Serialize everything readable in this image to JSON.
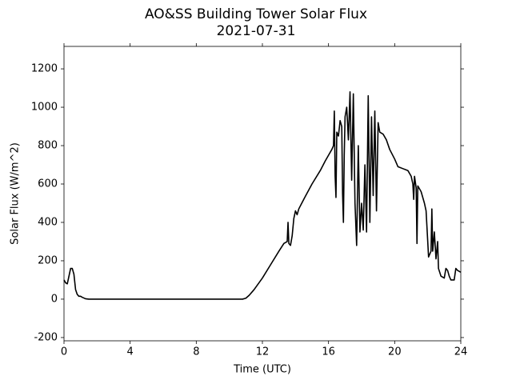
{
  "chart_data": {
    "type": "line",
    "title": "AO&SS Building Tower Solar Flux",
    "subtitle": "2021-07-31",
    "x_label": "Time (UTC)",
    "y_label": "Solar Flux (W/m^2)",
    "x": [
      0,
      0.1,
      0.2,
      0.3,
      0.4,
      0.5,
      0.6,
      0.7,
      0.8,
      0.9,
      1.0,
      1.1,
      1.3,
      1.5,
      4,
      8,
      10.8,
      11.0,
      11.2,
      11.5,
      12.0,
      12.5,
      13.0,
      13.3,
      13.5,
      13.55,
      13.6,
      13.7,
      13.8,
      13.9,
      14.0,
      14.1,
      14.2,
      14.5,
      15.0,
      15.5,
      15.8,
      16.0,
      16.2,
      16.3,
      16.35,
      16.4,
      16.45,
      16.5,
      16.6,
      16.7,
      16.8,
      16.85,
      16.9,
      16.95,
      17.0,
      17.1,
      17.2,
      17.3,
      17.4,
      17.5,
      17.6,
      17.7,
      17.8,
      17.9,
      18.0,
      18.1,
      18.2,
      18.3,
      18.4,
      18.5,
      18.6,
      18.7,
      18.8,
      18.9,
      19.0,
      19.1,
      19.3,
      19.5,
      19.7,
      20.0,
      20.2,
      20.5,
      20.8,
      21.0,
      21.1,
      21.15,
      21.2,
      21.3,
      21.35,
      21.4,
      21.6,
      21.8,
      21.9,
      22.0,
      22.05,
      22.2,
      22.25,
      22.3,
      22.4,
      22.5,
      22.6,
      22.65,
      22.8,
      23.0,
      23.1,
      23.2,
      23.3,
      23.4,
      23.6,
      23.7,
      23.8,
      24.0
    ],
    "series": [
      {
        "name": "Solar Flux",
        "color": "#000000",
        "values": [
          100,
          85,
          80,
          120,
          160,
          160,
          130,
          50,
          25,
          15,
          15,
          10,
          2,
          0,
          0,
          0,
          0,
          5,
          20,
          50,
          110,
          180,
          250,
          290,
          300,
          400,
          290,
          280,
          330,
          420,
          460,
          440,
          470,
          520,
          600,
          670,
          720,
          750,
          780,
          800,
          980,
          640,
          530,
          870,
          850,
          930,
          900,
          550,
          400,
          750,
          950,
          1000,
          830,
          1080,
          620,
          1070,
          500,
          280,
          800,
          350,
          500,
          360,
          700,
          350,
          1060,
          400,
          950,
          540,
          980,
          460,
          920,
          870,
          860,
          830,
          780,
          730,
          690,
          680,
          670,
          640,
          600,
          520,
          640,
          580,
          290,
          590,
          560,
          500,
          460,
          300,
          220,
          250,
          470,
          250,
          350,
          210,
          300,
          160,
          120,
          110,
          160,
          150,
          120,
          100,
          100,
          160,
          150,
          140
        ]
      }
    ],
    "xlim": [
      0,
      24
    ],
    "xticks": [
      0,
      4,
      8,
      12,
      16,
      20,
      24
    ],
    "ylim": [
      -217,
      1317
    ],
    "yticks": [
      -200,
      0,
      200,
      400,
      600,
      800,
      1000,
      1200
    ],
    "grid": false
  }
}
